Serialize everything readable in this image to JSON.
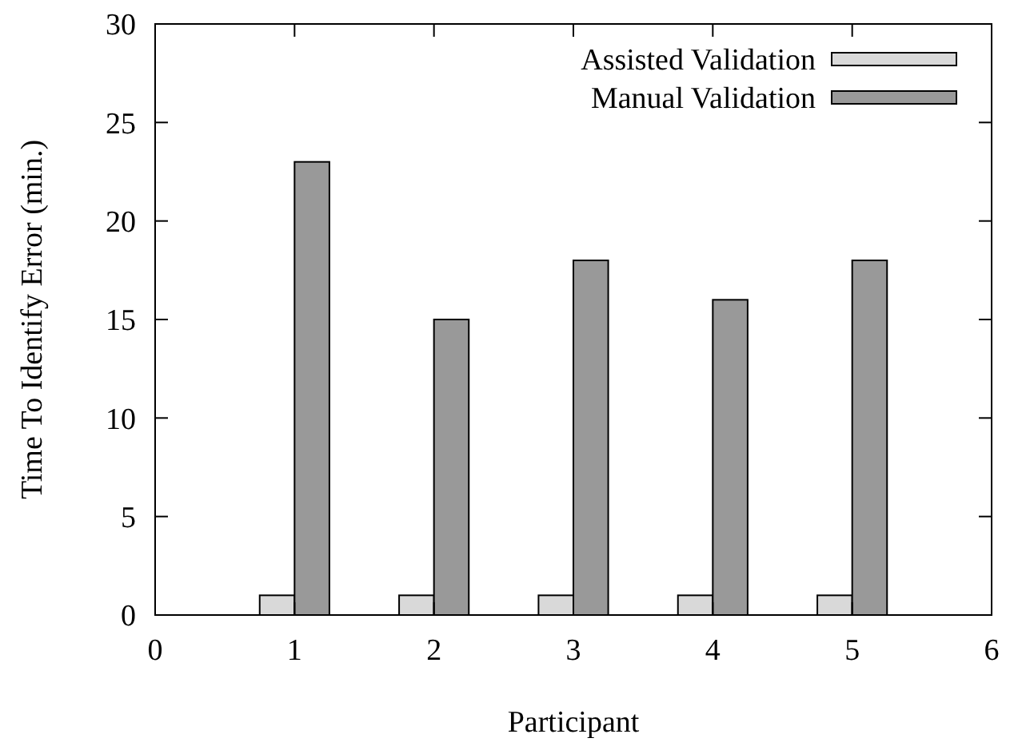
{
  "chart_data": {
    "type": "bar",
    "xlabel": "Participant",
    "ylabel": "Time To Identify Error (min.)",
    "x": [
      1,
      2,
      3,
      4,
      5
    ],
    "series": [
      {
        "name": "Assisted Validation",
        "color": "#d9d9d9",
        "values": [
          1,
          1,
          1,
          1,
          1
        ]
      },
      {
        "name": "Manual Validation",
        "color": "#999999",
        "values": [
          23,
          15,
          18,
          16,
          18
        ]
      }
    ],
    "xlim": [
      0,
      6
    ],
    "xticks": [
      0,
      1,
      2,
      3,
      4,
      5,
      6
    ],
    "ylim": [
      0,
      30
    ],
    "yticks": [
      0,
      5,
      10,
      15,
      20,
      25,
      30
    ],
    "grid": false,
    "legend": "top right"
  }
}
